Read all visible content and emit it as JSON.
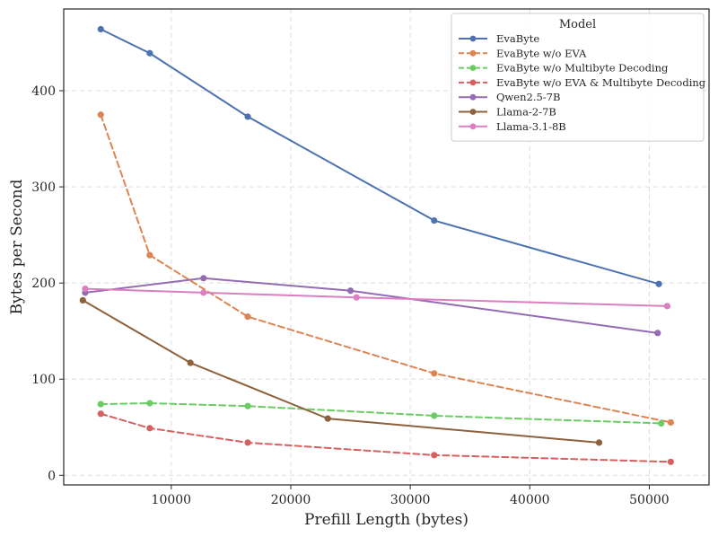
{
  "chart_data": {
    "type": "line",
    "xlabel": "Prefill Length (bytes)",
    "ylabel": "Bytes per Second",
    "xlim": [
      1000,
      55000
    ],
    "ylim": [
      -10,
      485
    ],
    "xticks": [
      10000,
      20000,
      30000,
      40000,
      50000
    ],
    "yticks": [
      0,
      100,
      200,
      300,
      400
    ],
    "grid": true,
    "legend": {
      "title": "Model",
      "placement": "top-right"
    },
    "series": [
      {
        "name": "EvaByte",
        "color": "#4c72b0",
        "dashed": false,
        "points": [
          [
            4100,
            464
          ],
          [
            8200,
            439
          ],
          [
            16400,
            373
          ],
          [
            32000,
            265
          ],
          [
            50800,
            199
          ]
        ]
      },
      {
        "name": "EvaByte w/o EVA",
        "color": "#dd8452",
        "dashed": true,
        "points": [
          [
            4100,
            375
          ],
          [
            8200,
            229
          ],
          [
            16400,
            165
          ],
          [
            32000,
            106
          ],
          [
            51800,
            55
          ]
        ]
      },
      {
        "name": "EvaByte w/o Multibyte Decoding",
        "color": "#6acc64",
        "dashed": true,
        "points": [
          [
            4100,
            74
          ],
          [
            8200,
            75
          ],
          [
            16400,
            72
          ],
          [
            32000,
            62
          ],
          [
            51000,
            54
          ]
        ]
      },
      {
        "name": "EvaByte w/o EVA & Multibyte Decoding",
        "color": "#d65f5f",
        "dashed": true,
        "points": [
          [
            4100,
            64
          ],
          [
            8200,
            49
          ],
          [
            16400,
            34
          ],
          [
            32000,
            21
          ],
          [
            51800,
            14
          ]
        ]
      },
      {
        "name": "Qwen2.5-7B",
        "color": "#956cb4",
        "dashed": false,
        "points": [
          [
            2800,
            190
          ],
          [
            12700,
            205
          ],
          [
            25000,
            192
          ],
          [
            50700,
            148
          ]
        ]
      },
      {
        "name": "Llama-2-7B",
        "color": "#8c613c",
        "dashed": false,
        "points": [
          [
            2600,
            182
          ],
          [
            11600,
            117
          ],
          [
            23100,
            59
          ],
          [
            45800,
            34
          ]
        ]
      },
      {
        "name": "Llama-3.1-8B",
        "color": "#dc7ec0",
        "dashed": false,
        "points": [
          [
            2800,
            194
          ],
          [
            12700,
            190
          ],
          [
            25500,
            185
          ],
          [
            51500,
            176
          ]
        ]
      }
    ]
  }
}
